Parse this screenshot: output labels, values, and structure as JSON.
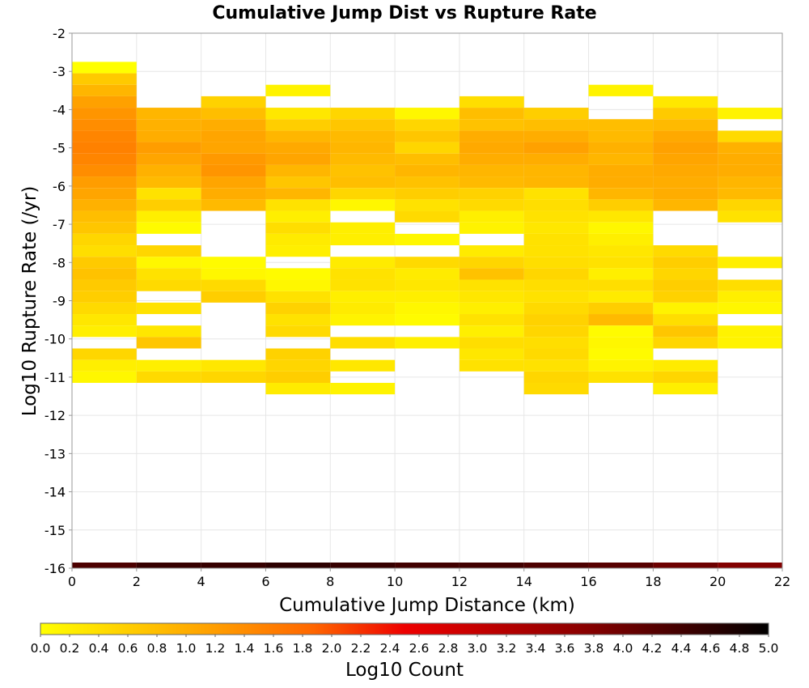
{
  "chart_data": {
    "type": "heatmap",
    "title": "Cumulative Jump Dist vs Rupture Rate",
    "xlabel": "Cumulative Jump Distance (km)",
    "ylabel": "Log10 Rupture Rate (/yr)",
    "xlim": [
      0,
      22
    ],
    "ylim": [
      -16,
      -2
    ],
    "x_ticks": [
      "0",
      "2",
      "4",
      "6",
      "8",
      "10",
      "12",
      "14",
      "16",
      "18",
      "20",
      "22"
    ],
    "y_ticks": [
      "-2",
      "-3",
      "-4",
      "-5",
      "-6",
      "-7",
      "-8",
      "-9",
      "-10",
      "-11",
      "-12",
      "-13",
      "-14",
      "-15",
      "-16"
    ],
    "grid": true,
    "x_bin_width": 2,
    "y_bin_height": 0.3,
    "colorbar": {
      "label": "Log10 Count",
      "min": 0.0,
      "max": 5.0,
      "ticks": [
        "0.0",
        "0.2",
        "0.4",
        "0.6",
        "0.8",
        "1.0",
        "1.2",
        "1.4",
        "1.6",
        "1.8",
        "2.0",
        "2.2",
        "2.4",
        "2.6",
        "2.8",
        "3.0",
        "3.2",
        "3.4",
        "3.6",
        "3.8",
        "4.0",
        "4.2",
        "4.4",
        "4.6",
        "4.8",
        "5.0"
      ],
      "colors": [
        "#ffff00",
        "#ffcc00",
        "#ff9900",
        "#ff6600",
        "#ee0000",
        "#bb0000",
        "#880000",
        "#440000",
        "#000000"
      ]
    },
    "columns": [
      {
        "x0": 0,
        "x1": 2,
        "cells": [
          [
            -2.9,
            0.0
          ],
          [
            -3.2,
            0.65
          ],
          [
            -3.5,
            0.9
          ],
          [
            -3.8,
            1.15
          ],
          [
            -4.1,
            1.3
          ],
          [
            -4.4,
            1.4
          ],
          [
            -4.7,
            1.5
          ],
          [
            -5.0,
            1.55
          ],
          [
            -5.3,
            1.5
          ],
          [
            -5.6,
            1.4
          ],
          [
            -5.9,
            1.2
          ],
          [
            -6.2,
            1.1
          ],
          [
            -6.5,
            0.95
          ],
          [
            -6.8,
            0.8
          ],
          [
            -7.1,
            0.7
          ],
          [
            -7.4,
            0.5
          ],
          [
            -7.7,
            0.4
          ],
          [
            -8.0,
            0.65
          ],
          [
            -8.3,
            0.75
          ],
          [
            -8.6,
            0.65
          ],
          [
            -8.9,
            0.6
          ],
          [
            -9.2,
            0.45
          ],
          [
            -9.5,
            0.3
          ],
          [
            -9.8,
            0.2
          ],
          [
            -10.4,
            0.5
          ],
          [
            -10.7,
            0.2
          ],
          [
            -11.0,
            0.1
          ]
        ]
      },
      {
        "x0": 2,
        "x1": 4,
        "cells": [
          [
            -4.1,
            0.9
          ],
          [
            -4.4,
            0.95
          ],
          [
            -4.7,
            1.0
          ],
          [
            -5.0,
            1.2
          ],
          [
            -5.3,
            1.1
          ],
          [
            -5.6,
            0.95
          ],
          [
            -5.9,
            0.85
          ],
          [
            -6.2,
            0.35
          ],
          [
            -6.5,
            0.6
          ],
          [
            -6.8,
            0.2
          ],
          [
            -7.1,
            0.05
          ],
          [
            -7.7,
            0.5
          ],
          [
            -8.0,
            0.1
          ],
          [
            -8.3,
            0.35
          ],
          [
            -8.6,
            0.45
          ],
          [
            -9.2,
            0.35
          ],
          [
            -9.8,
            0.3
          ],
          [
            -10.1,
            0.7
          ],
          [
            -10.7,
            0.2
          ],
          [
            -11.0,
            0.45
          ]
        ]
      },
      {
        "x0": 4,
        "x1": 6,
        "cells": [
          [
            -3.8,
            0.55
          ],
          [
            -4.1,
            0.8
          ],
          [
            -4.4,
            1.0
          ],
          [
            -4.7,
            1.1
          ],
          [
            -5.0,
            1.1
          ],
          [
            -5.3,
            1.25
          ],
          [
            -5.6,
            1.3
          ],
          [
            -5.9,
            1.1
          ],
          [
            -6.2,
            1.0
          ],
          [
            -6.5,
            0.85
          ],
          [
            -8.0,
            0.05
          ],
          [
            -8.3,
            0.1
          ],
          [
            -8.6,
            0.45
          ],
          [
            -8.9,
            0.6
          ],
          [
            -10.7,
            0.3
          ],
          [
            -11.0,
            0.5
          ]
        ]
      },
      {
        "x0": 6,
        "x1": 8,
        "cells": [
          [
            -3.5,
            0.15
          ],
          [
            -4.1,
            0.3
          ],
          [
            -4.4,
            0.6
          ],
          [
            -4.7,
            0.9
          ],
          [
            -5.0,
            1.05
          ],
          [
            -5.3,
            1.1
          ],
          [
            -5.6,
            0.9
          ],
          [
            -5.9,
            0.7
          ],
          [
            -6.2,
            0.9
          ],
          [
            -6.5,
            0.35
          ],
          [
            -6.8,
            0.2
          ],
          [
            -7.1,
            0.4
          ],
          [
            -7.4,
            0.25
          ],
          [
            -7.7,
            0.2
          ],
          [
            -8.3,
            0.05
          ],
          [
            -8.6,
            0.1
          ],
          [
            -8.9,
            0.35
          ],
          [
            -9.2,
            0.55
          ],
          [
            -9.5,
            0.35
          ],
          [
            -9.8,
            0.45
          ],
          [
            -10.4,
            0.55
          ],
          [
            -10.7,
            0.5
          ],
          [
            -11.0,
            0.6
          ],
          [
            -11.3,
            0.25
          ]
        ]
      },
      {
        "x0": 8,
        "x1": 10,
        "cells": [
          [
            -4.1,
            0.5
          ],
          [
            -4.4,
            0.7
          ],
          [
            -4.7,
            0.85
          ],
          [
            -5.0,
            0.9
          ],
          [
            -5.3,
            0.85
          ],
          [
            -5.6,
            0.75
          ],
          [
            -5.9,
            0.8
          ],
          [
            -6.2,
            0.5
          ],
          [
            -6.5,
            0.1
          ],
          [
            -7.1,
            0.2
          ],
          [
            -7.4,
            0.2
          ],
          [
            -8.0,
            0.25
          ],
          [
            -8.3,
            0.35
          ],
          [
            -8.6,
            0.35
          ],
          [
            -8.9,
            0.2
          ],
          [
            -9.2,
            0.25
          ],
          [
            -9.5,
            0.15
          ],
          [
            -10.1,
            0.4
          ],
          [
            -10.7,
            0.3
          ],
          [
            -11.3,
            0.15
          ]
        ]
      },
      {
        "x0": 10,
        "x1": 12,
        "cells": [
          [
            -4.1,
            0.1
          ],
          [
            -4.4,
            0.5
          ],
          [
            -4.7,
            0.7
          ],
          [
            -5.0,
            0.5
          ],
          [
            -5.3,
            0.8
          ],
          [
            -5.6,
            0.9
          ],
          [
            -5.9,
            0.75
          ],
          [
            -6.2,
            0.6
          ],
          [
            -6.5,
            0.35
          ],
          [
            -6.8,
            0.45
          ],
          [
            -7.4,
            0.1
          ],
          [
            -8.0,
            0.45
          ],
          [
            -8.3,
            0.25
          ],
          [
            -8.6,
            0.3
          ],
          [
            -8.9,
            0.2
          ],
          [
            -9.2,
            0.1
          ],
          [
            -9.5,
            0.05
          ],
          [
            -10.1,
            0.2
          ]
        ]
      },
      {
        "x0": 12,
        "x1": 14,
        "cells": [
          [
            -3.8,
            0.4
          ],
          [
            -4.1,
            0.8
          ],
          [
            -4.4,
            0.75
          ],
          [
            -4.7,
            1.0
          ],
          [
            -5.0,
            1.05
          ],
          [
            -5.3,
            1.0
          ],
          [
            -5.6,
            0.9
          ],
          [
            -5.9,
            0.85
          ],
          [
            -6.2,
            0.55
          ],
          [
            -6.5,
            0.45
          ],
          [
            -6.8,
            0.2
          ],
          [
            -7.1,
            0.15
          ],
          [
            -7.7,
            0.25
          ],
          [
            -8.0,
            0.5
          ],
          [
            -8.3,
            0.75
          ],
          [
            -8.6,
            0.35
          ],
          [
            -8.9,
            0.3
          ],
          [
            -9.2,
            0.2
          ],
          [
            -9.5,
            0.35
          ],
          [
            -9.8,
            0.2
          ],
          [
            -10.1,
            0.4
          ],
          [
            -10.4,
            0.3
          ],
          [
            -10.7,
            0.35
          ]
        ]
      },
      {
        "x0": 14,
        "x1": 16,
        "cells": [
          [
            -4.1,
            0.6
          ],
          [
            -4.4,
            0.8
          ],
          [
            -4.7,
            1.0
          ],
          [
            -5.0,
            1.15
          ],
          [
            -5.3,
            1.0
          ],
          [
            -5.6,
            0.9
          ],
          [
            -5.9,
            0.9
          ],
          [
            -6.2,
            0.35
          ],
          [
            -6.5,
            0.4
          ],
          [
            -6.8,
            0.35
          ],
          [
            -7.1,
            0.3
          ],
          [
            -7.4,
            0.35
          ],
          [
            -7.7,
            0.35
          ],
          [
            -8.0,
            0.4
          ],
          [
            -8.3,
            0.5
          ],
          [
            -8.6,
            0.4
          ],
          [
            -8.9,
            0.35
          ],
          [
            -9.2,
            0.45
          ],
          [
            -9.5,
            0.55
          ],
          [
            -9.8,
            0.5
          ],
          [
            -10.1,
            0.4
          ],
          [
            -10.4,
            0.45
          ],
          [
            -10.7,
            0.35
          ],
          [
            -11.0,
            0.5
          ],
          [
            -11.3,
            0.45
          ]
        ]
      },
      {
        "x0": 16,
        "x1": 18,
        "cells": [
          [
            -3.5,
            0.15
          ],
          [
            -4.4,
            0.8
          ],
          [
            -4.7,
            0.85
          ],
          [
            -5.0,
            0.95
          ],
          [
            -5.3,
            0.9
          ],
          [
            -5.6,
            1.0
          ],
          [
            -5.9,
            1.0
          ],
          [
            -6.2,
            0.9
          ],
          [
            -6.5,
            0.6
          ],
          [
            -6.8,
            0.3
          ],
          [
            -7.1,
            0.1
          ],
          [
            -7.4,
            0.2
          ],
          [
            -7.7,
            0.3
          ],
          [
            -8.0,
            0.35
          ],
          [
            -8.3,
            0.2
          ],
          [
            -8.6,
            0.4
          ],
          [
            -8.9,
            0.25
          ],
          [
            -9.2,
            0.6
          ],
          [
            -9.5,
            0.85
          ],
          [
            -9.8,
            0.05
          ],
          [
            -10.1,
            0.1
          ],
          [
            -10.4,
            0.05
          ],
          [
            -10.7,
            0.15
          ],
          [
            -11.0,
            0.35
          ]
        ]
      },
      {
        "x0": 18,
        "x1": 20,
        "cells": [
          [
            -3.8,
            0.3
          ],
          [
            -4.1,
            0.65
          ],
          [
            -4.4,
            0.85
          ],
          [
            -4.7,
            1.05
          ],
          [
            -5.0,
            1.15
          ],
          [
            -5.3,
            1.1
          ],
          [
            -5.6,
            1.05
          ],
          [
            -5.9,
            1.0
          ],
          [
            -6.2,
            1.0
          ],
          [
            -6.5,
            0.9
          ],
          [
            -7.7,
            0.45
          ],
          [
            -8.0,
            0.6
          ],
          [
            -8.3,
            0.5
          ],
          [
            -8.6,
            0.6
          ],
          [
            -8.9,
            0.55
          ],
          [
            -9.2,
            0.15
          ],
          [
            -9.5,
            0.4
          ],
          [
            -9.8,
            0.7
          ],
          [
            -10.1,
            0.5
          ],
          [
            -10.7,
            0.25
          ],
          [
            -11.0,
            0.5
          ],
          [
            -11.3,
            0.2
          ]
        ]
      },
      {
        "x0": 20,
        "x1": 22,
        "cells": [
          [
            -4.1,
            0.15
          ],
          [
            -4.7,
            0.45
          ],
          [
            -5.0,
            0.95
          ],
          [
            -5.3,
            1.0
          ],
          [
            -5.6,
            1.0
          ],
          [
            -5.9,
            0.9
          ],
          [
            -6.2,
            0.85
          ],
          [
            -6.5,
            0.5
          ],
          [
            -6.8,
            0.35
          ],
          [
            -8.0,
            0.2
          ],
          [
            -8.6,
            0.4
          ],
          [
            -8.9,
            0.2
          ],
          [
            -9.2,
            0.1
          ],
          [
            -9.8,
            0.15
          ],
          [
            -10.1,
            0.15
          ]
        ]
      }
    ],
    "bottom_band": {
      "y": -16,
      "values": [
        4.3,
        4.5,
        4.5,
        4.6,
        4.5,
        4.4,
        4.4,
        4.3,
        4.2,
        4.0,
        3.8
      ]
    }
  }
}
